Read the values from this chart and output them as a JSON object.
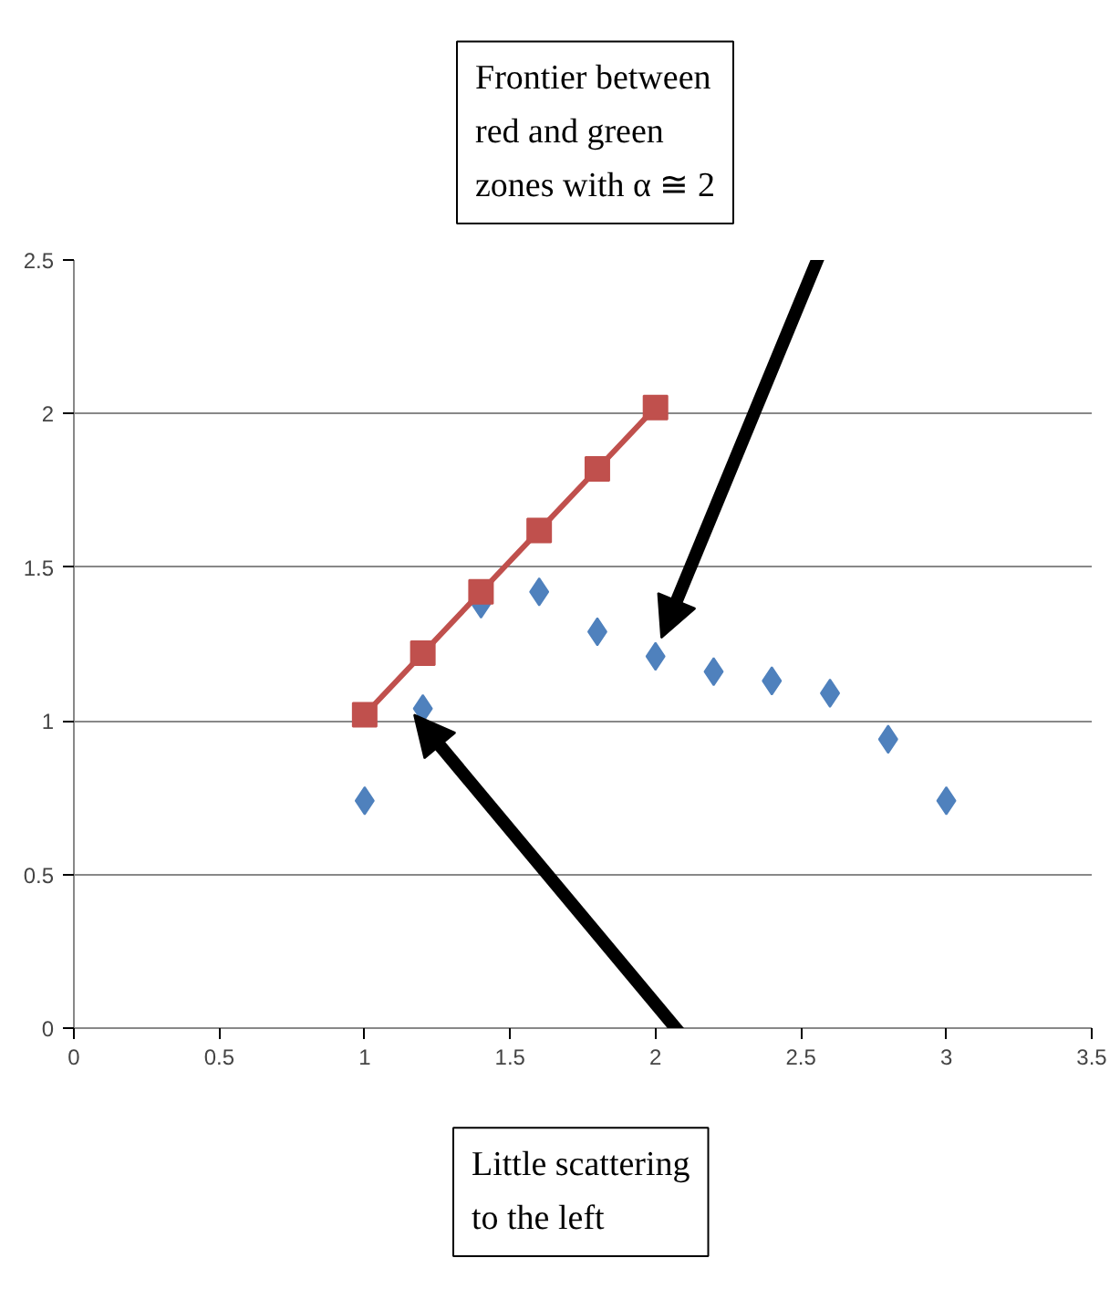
{
  "chart_data": {
    "type": "scatter",
    "xlim": [
      0,
      3.5
    ],
    "ylim": [
      0,
      2.5
    ],
    "xticks": [
      0,
      0.5,
      1,
      1.5,
      2,
      2.5,
      3,
      3.5
    ],
    "yticks": [
      0,
      0.5,
      1,
      1.5,
      2,
      2.5
    ],
    "grid": "y",
    "series": [
      {
        "marker": "diamond",
        "color": "#4f81bd",
        "x": [
          1.0,
          1.2,
          1.4,
          1.6,
          1.8,
          2.0,
          2.2,
          2.4,
          2.6,
          2.8,
          3.0
        ],
        "values": [
          0.74,
          1.04,
          1.38,
          1.42,
          1.29,
          1.21,
          1.16,
          1.13,
          1.09,
          0.94,
          0.74
        ]
      },
      {
        "type": "line",
        "marker": "square",
        "color": "#c0504d",
        "x": [
          1.0,
          1.2,
          1.4,
          1.6,
          1.8,
          2.0
        ],
        "values": [
          1.02,
          1.22,
          1.42,
          1.62,
          1.82,
          2.02
        ]
      }
    ],
    "annotations": [
      "Frontier between red and green zones with α ≅ 2",
      "Little scattering to the left"
    ]
  }
}
